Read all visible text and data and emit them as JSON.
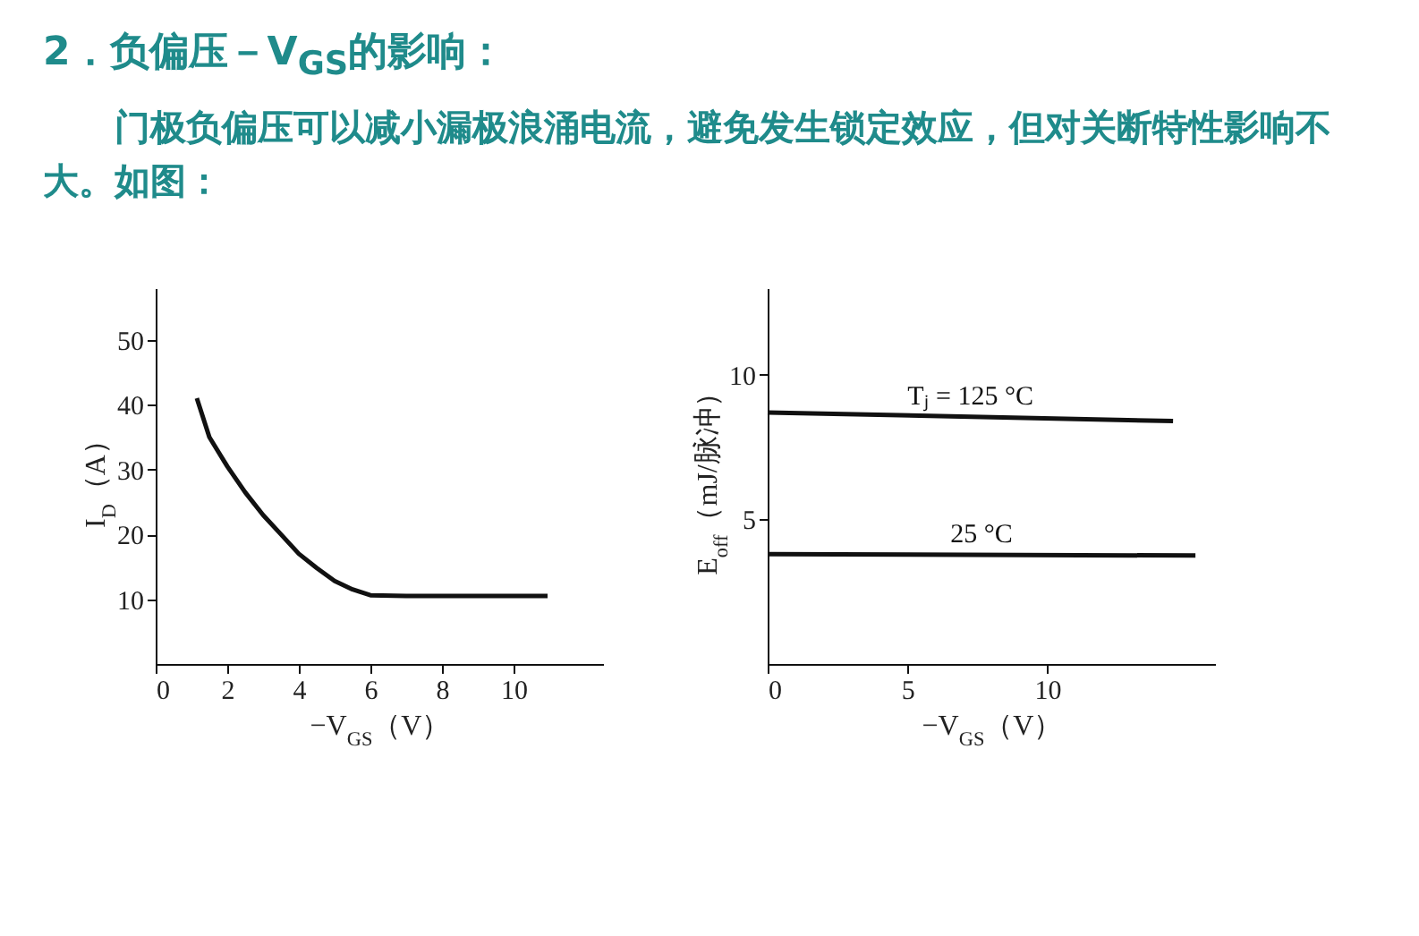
{
  "chart_data": [
    {
      "type": "line",
      "title": "2．负偏压－V$_{GS}$的影响：",
      "subtitle": "门极负偏压可以减小漏极浪涌电流，避免发生锁定效应，但对关断特性影响不大。如图：",
      "xlabel": "−V$_{GS}$（V）",
      "ylabel": "I$_{D}$（A）",
      "xlim": [
        0,
        12.5
      ],
      "ylim": [
        0,
        58
      ],
      "xticks": [
        0,
        2,
        4,
        6,
        8,
        10
      ],
      "yticks": [
        10,
        20,
        30,
        40,
        50
      ],
      "series": [
        {
          "color": "#111111",
          "x": [
            1.15,
            1.5,
            2,
            2.5,
            3,
            3.5,
            4,
            4.5,
            5,
            5.5,
            6,
            7,
            8,
            9,
            10,
            10.95
          ],
          "values": [
            41,
            35,
            30.5,
            26.5,
            23,
            20,
            17,
            14.8,
            12.8,
            11.5,
            10.6,
            10.5,
            10.5,
            10.5,
            10.5,
            10.5
          ]
        }
      ]
    },
    {
      "type": "line",
      "xlabel": "−V$_{GS}$（V）",
      "ylabel": "E$_{off}$（mJ/脉冲）",
      "xlim": [
        0,
        16
      ],
      "ylim": [
        0,
        13
      ],
      "xticks": [
        0,
        5,
        10
      ],
      "yticks": [
        5,
        10
      ],
      "series": [
        {
          "name": "Tⱼ = 125 °C",
          "color": "#111111",
          "x": [
            0,
            14.5
          ],
          "values": [
            8.7,
            8.4
          ]
        },
        {
          "name": "25 °C",
          "color": "#111111",
          "x": [
            0,
            15.3
          ],
          "values": [
            3.8,
            3.75
          ]
        }
      ]
    }
  ]
}
